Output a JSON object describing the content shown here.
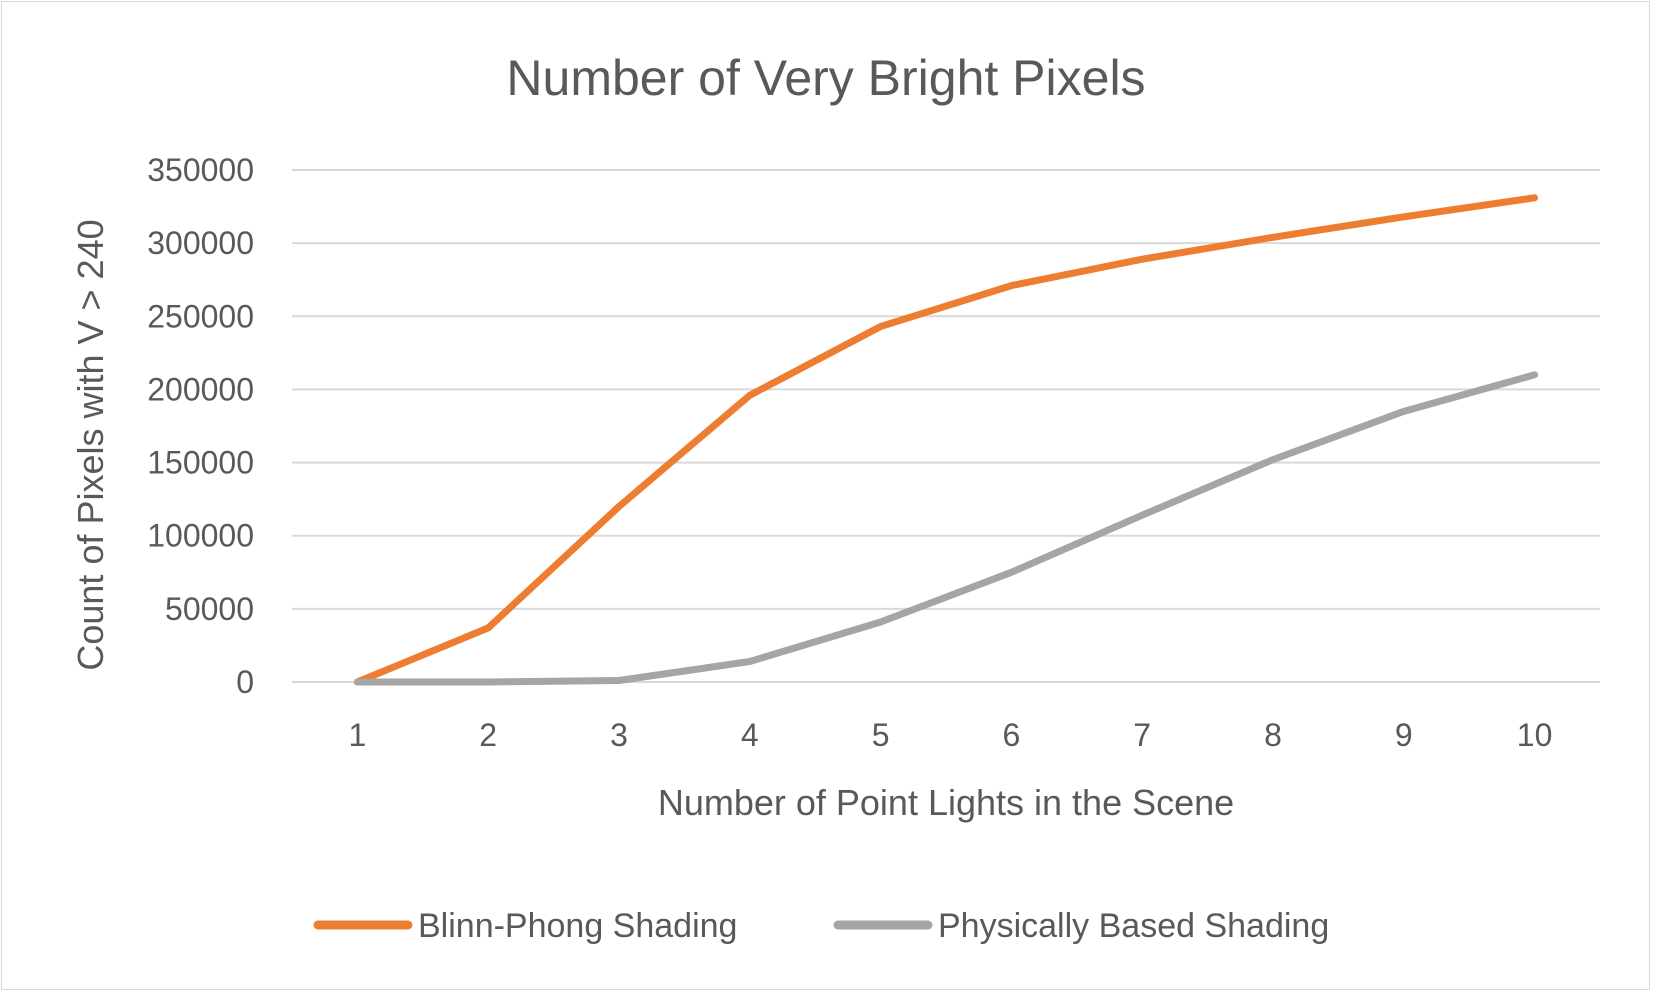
{
  "chart_data": {
    "type": "line",
    "title": "Number of Very Bright Pixels",
    "xlabel": "Number of Point Lights in the Scene",
    "ylabel": "Count of Pixels with V > 240",
    "categories": [
      "1",
      "2",
      "3",
      "4",
      "5",
      "6",
      "7",
      "8",
      "9",
      "10"
    ],
    "ylim": [
      0,
      350000
    ],
    "yticks": [
      "0",
      "50000",
      "100000",
      "150000",
      "200000",
      "250000",
      "300000",
      "350000"
    ],
    "grid": true,
    "legend_position": "bottom",
    "series": [
      {
        "name": "Blinn-Phong Shading",
        "color": "#ed7d31",
        "values": [
          0,
          37000,
          120000,
          196000,
          243000,
          271000,
          289000,
          304000,
          318000,
          331000
        ]
      },
      {
        "name": "Physically Based Shading",
        "color": "#a5a5a5",
        "values": [
          0,
          0,
          1000,
          14000,
          41000,
          75000,
          114000,
          152000,
          185000,
          210000
        ]
      }
    ]
  }
}
